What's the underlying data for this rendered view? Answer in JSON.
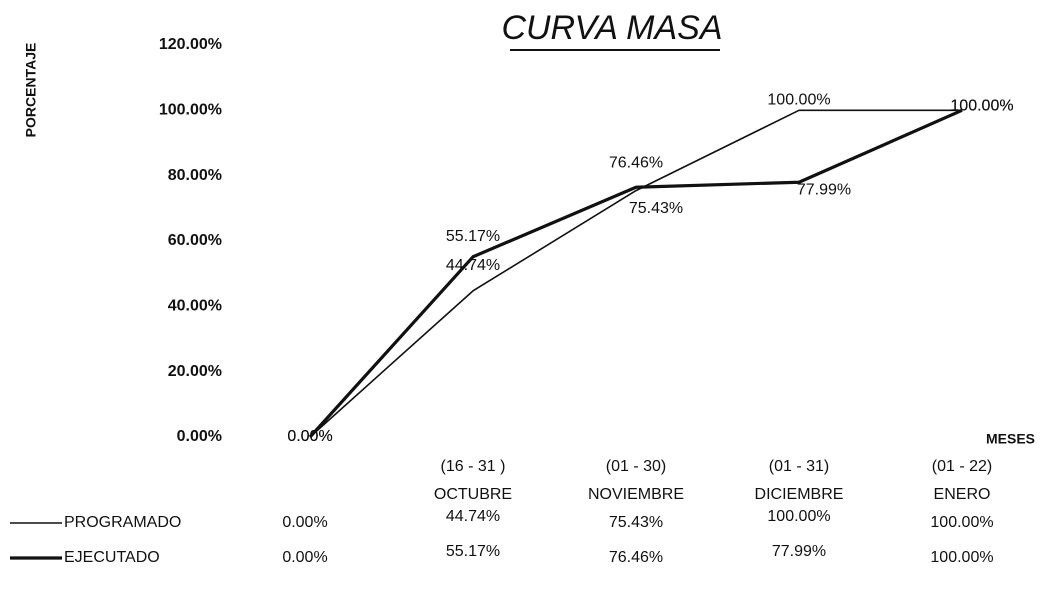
{
  "chart_data": {
    "type": "line",
    "title": "CURVA MASA",
    "y_label": "PORCENTAJE",
    "x_label": "MESES",
    "categories": [
      null,
      [
        "(16 - 31 )",
        "OCTUBRE"
      ],
      [
        "(01 - 30)",
        "NOVIEMBRE"
      ],
      [
        "(01 - 31)",
        "DICIEMBRE"
      ],
      [
        "(01 - 22)",
        "ENERO"
      ]
    ],
    "series": [
      {
        "name": "PROGRAMADO",
        "color": "#111111",
        "line_width": 1.6,
        "values": [
          0,
          44.74,
          75.43,
          100,
          100
        ],
        "value_labels": [
          "0.00%",
          "44.74%",
          "75.43%",
          "100.00%",
          "100.00%"
        ]
      },
      {
        "name": "EJECUTADO",
        "color": "#111111",
        "line_width": 3.2,
        "values": [
          0,
          55.17,
          76.46,
          77.99,
          100
        ],
        "value_labels": [
          "0.00%",
          "55.17%",
          "76.46%",
          "77.99%",
          "100.00%"
        ]
      }
    ],
    "ylim": [
      0,
      120
    ],
    "yticks": [
      {
        "value": 0,
        "label": "0.00%"
      },
      {
        "value": 20,
        "label": "20.00%"
      },
      {
        "value": 40,
        "label": "40.00%"
      },
      {
        "value": 60,
        "label": "60.00%"
      },
      {
        "value": 80,
        "label": "80.00%"
      },
      {
        "value": 100,
        "label": "100.00%"
      },
      {
        "value": 120,
        "label": "120.00%"
      }
    ],
    "grid": false
  }
}
